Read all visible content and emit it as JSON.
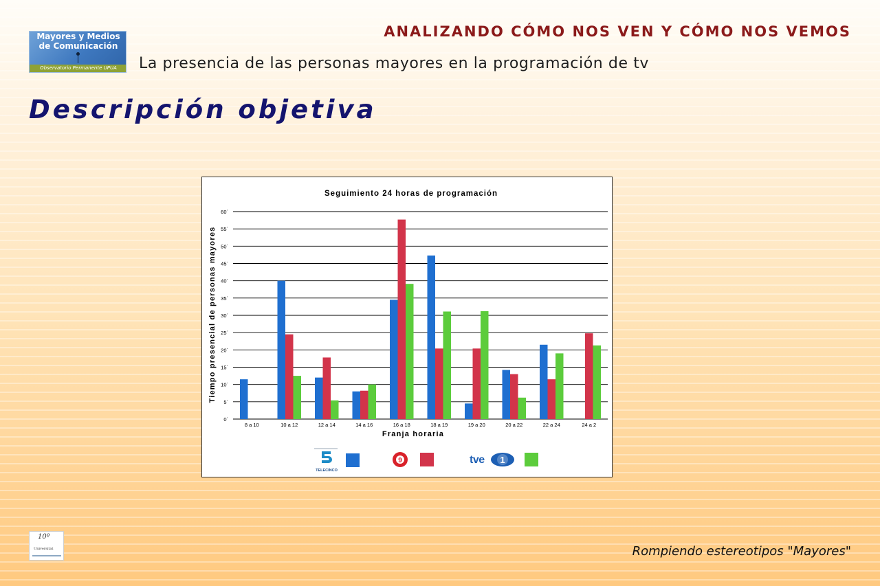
{
  "header": {
    "title": "ANALIZANDO CÓMO NOS VEN Y CÓMO NOS VEMOS",
    "subtitle": "La presencia de las personas mayores en la programación de tv"
  },
  "logo": {
    "line1": "Mayores y Medios",
    "line2": "de Comunicación",
    "caption": "Observatorio Permanente UPUA"
  },
  "page_title": "Descripción objetiva",
  "chart_data": {
    "type": "bar",
    "title": "Seguimiento 24 horas de programación",
    "xlabel": "Franja horaria",
    "ylabel": "Tiempo presencial de personas mayores",
    "categories": [
      "8 a 10",
      "10 a 12",
      "12 a 14",
      "14 a 16",
      "16 a 18",
      "18 a 19",
      "19 a 20",
      "20 a 22",
      "22 a 24",
      "24 a 2"
    ],
    "y_ticks": [
      "0´",
      "5´",
      "10´",
      "15´",
      "20´",
      "25´",
      "30´",
      "35´",
      "40´",
      "45´",
      "50´",
      "55´",
      "60´"
    ],
    "ylim": [
      0,
      60
    ],
    "grid": true,
    "legend_position": "bottom",
    "series": [
      {
        "color": "#1f6fd0",
        "values": [
          11.5,
          40,
          12,
          8,
          34.5,
          47.3,
          4.5,
          14.2,
          21.5,
          0
        ]
      },
      {
        "color": "#d2344a",
        "values": [
          0,
          24.5,
          17.8,
          8.2,
          57.7,
          20.4,
          20.4,
          13,
          11.5,
          24.8
        ]
      },
      {
        "color": "#5ccc3c",
        "values": [
          0,
          12.5,
          5.4,
          10,
          39.1,
          31.1,
          31.2,
          6.2,
          19,
          21.3
        ]
      }
    ]
  },
  "legend_logos": {
    "telecinco": "TELECINCO",
    "canal9": "9",
    "tve_text": "tve",
    "tve_num": "1"
  },
  "footer": {
    "tagline": "Rompiendo estereotipos \"Mayores\"",
    "logo_number": "10º",
    "logo_text": "Universitat"
  }
}
